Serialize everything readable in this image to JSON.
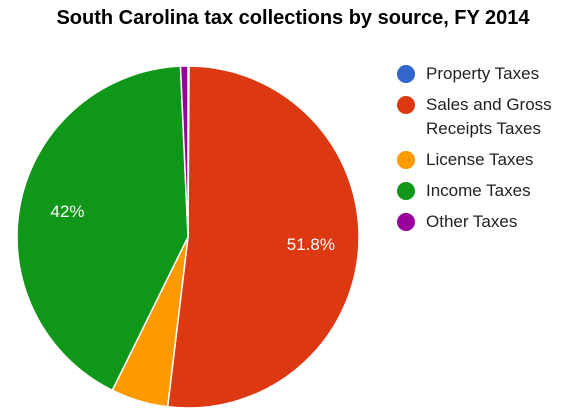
{
  "title": "South Carolina tax collections by source, FY 2014",
  "chart_data": {
    "type": "pie",
    "title": "South Carolina tax collections by source, FY 2014",
    "legend_position": "right",
    "start_angle_deg": 0,
    "direction": "clockwise",
    "slices": [
      {
        "label": "Property Taxes",
        "value": 0.1,
        "color": "#3366cc",
        "data_label": ""
      },
      {
        "label": "Sales and Gross Receipts Taxes",
        "value": 51.8,
        "color": "#dc3912",
        "data_label": "51.8%"
      },
      {
        "label": "License Taxes",
        "value": 5.4,
        "color": "#ff9900",
        "data_label": ""
      },
      {
        "label": "Income Taxes",
        "value": 42,
        "color": "#109618",
        "data_label": "42%"
      },
      {
        "label": "Other Taxes",
        "value": 0.7,
        "color": "#990099",
        "data_label": ""
      }
    ]
  },
  "legend": {
    "items": [
      {
        "label": "Property Taxes",
        "color": "#3366cc"
      },
      {
        "label": "Sales and Gross Receipts Taxes",
        "color": "#dc3912"
      },
      {
        "label": "License Taxes",
        "color": "#ff9900"
      },
      {
        "label": "Income Taxes",
        "color": "#109618"
      },
      {
        "label": "Other Taxes",
        "color": "#990099"
      }
    ]
  }
}
